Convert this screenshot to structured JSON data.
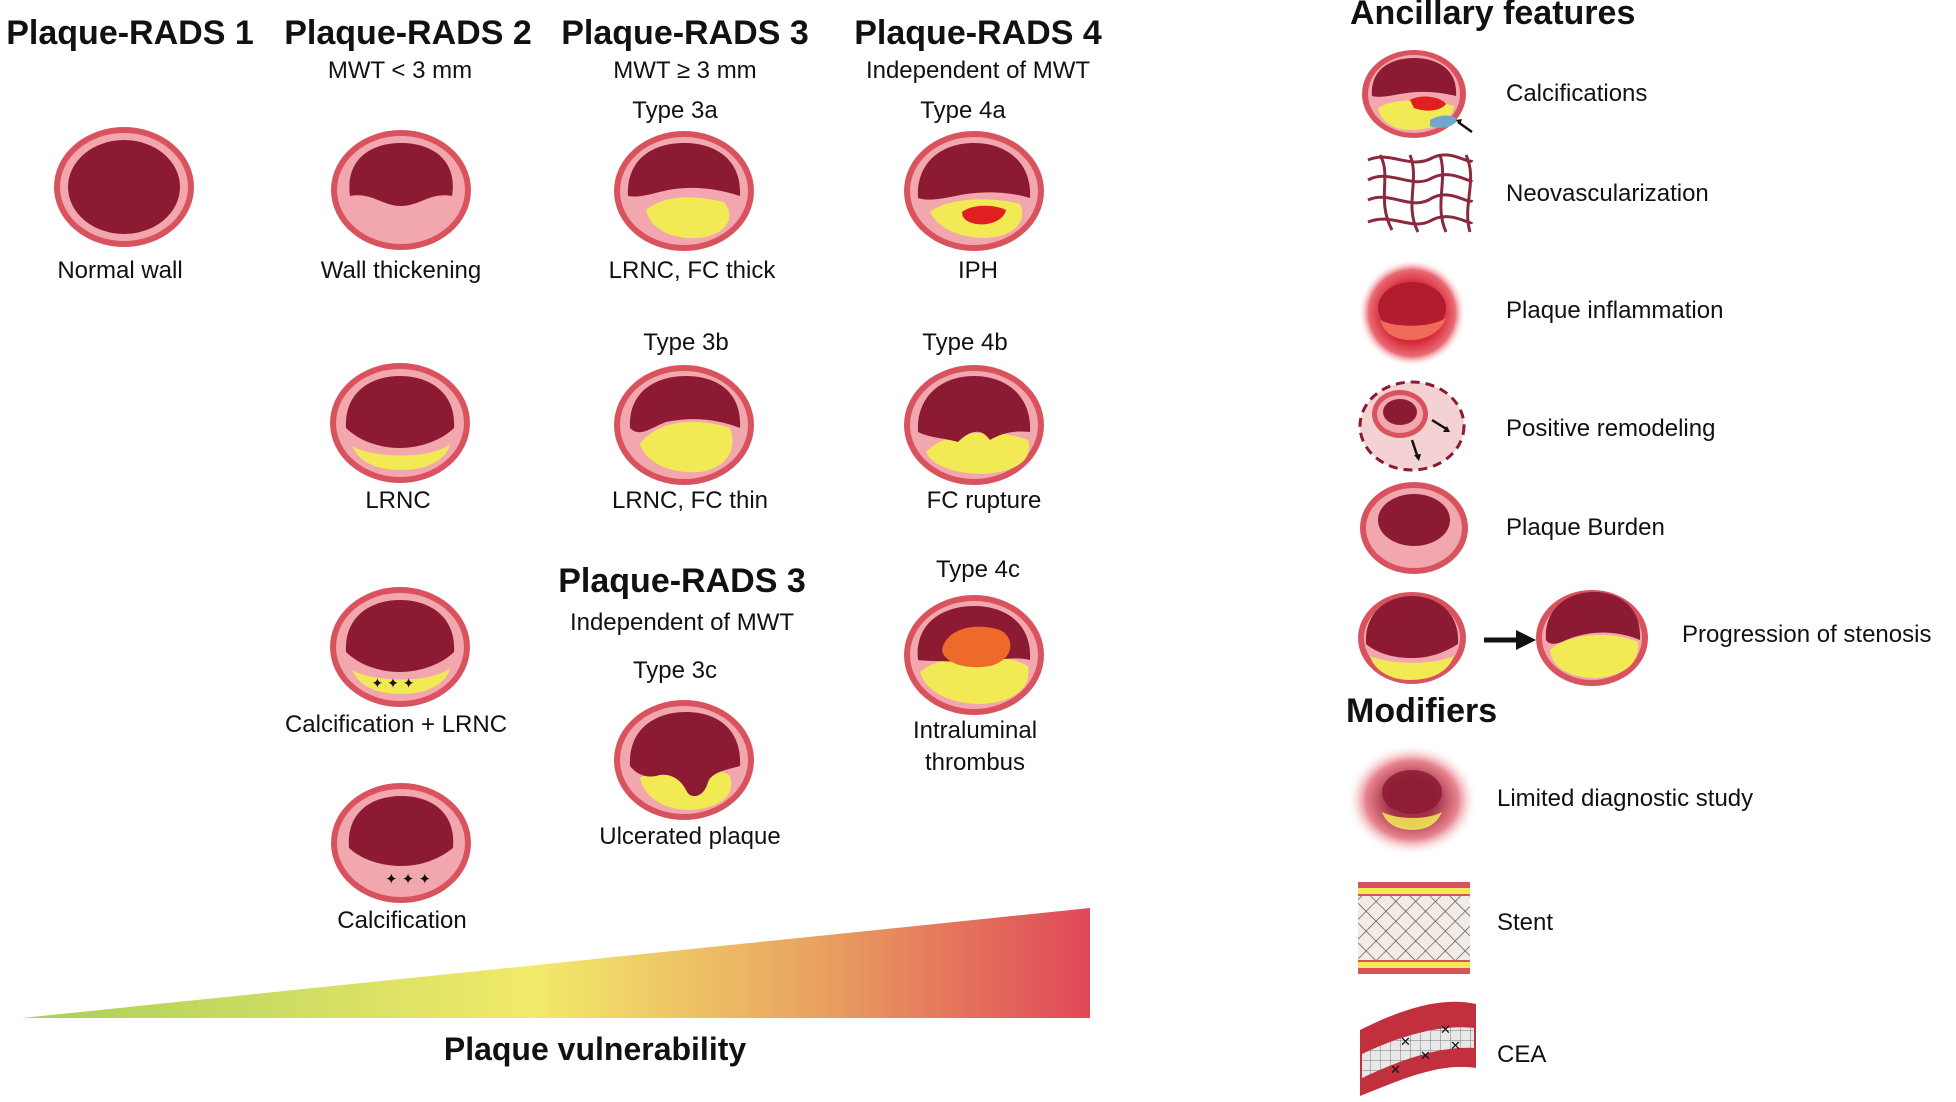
{
  "columns": [
    {
      "title": "Plaque-RADS 1",
      "subtitle": ""
    },
    {
      "title": "Plaque-RADS 2",
      "subtitle": "MWT < 3 mm"
    },
    {
      "title": "Plaque-RADS 3",
      "subtitle": "MWT ≥ 3 mm"
    },
    {
      "title": "Plaque-RADS 4",
      "subtitle": "Independent of MWT"
    }
  ],
  "section_3c": {
    "title": "Plaque-RADS 3",
    "subtitle": "Independent of MWT"
  },
  "types": {
    "t3a": "Type 3a",
    "t3b": "Type 3b",
    "t3c": "Type 3c",
    "t4a": "Type 4a",
    "t4b": "Type 4b",
    "t4c": "Type 4c"
  },
  "labels": {
    "normal_wall": "Normal wall",
    "wall_thickening": "Wall thickening",
    "lrnc": "LRNC",
    "calc_lrnc": "Calcification + LRNC",
    "calcification": "Calcification",
    "fc_thick": "LRNC, FC thick",
    "fc_thin": "LRNC, FC thin",
    "ulcerated": "Ulcerated plaque",
    "iph": "IPH",
    "fc_rupture": "FC rupture",
    "thrombus_1": "Intraluminal",
    "thrombus_2": "thrombus"
  },
  "vulnerability": {
    "title": "Plaque vulnerability",
    "colors": [
      "#a8cf5a",
      "#f2ea6a",
      "#e9a060",
      "#e04858"
    ]
  },
  "ancillary": {
    "title": "Ancillary features",
    "items": [
      "Calcifications",
      "Neovascularization",
      "Plaque inflammation",
      "Positive remodeling",
      "Plaque Burden",
      "Progression of stenosis"
    ]
  },
  "modifiers": {
    "title": "Modifiers",
    "items": [
      "Limited diagnostic study",
      "Stent",
      "CEA"
    ]
  },
  "colors": {
    "outer_ring": "#d9535f",
    "wall": "#f2a6ad",
    "lumen": "#8b1a32",
    "lipid": "#f2ea55",
    "hemorrhage": "#e02020",
    "thrombus": "#ee6a2a",
    "calcium": "#6fa8c8"
  }
}
